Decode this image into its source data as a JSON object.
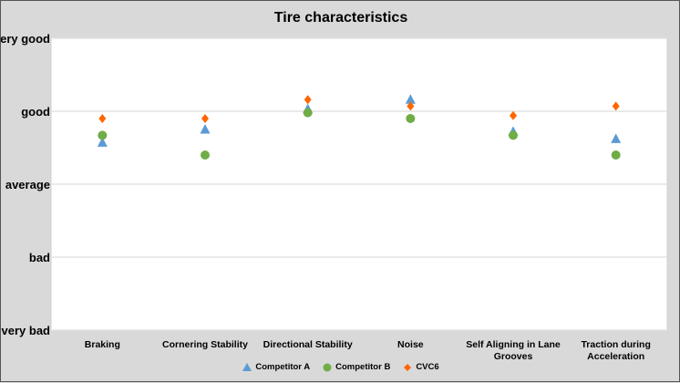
{
  "chart_data": {
    "type": "scatter",
    "title": "Tire characteristics",
    "categories": [
      "Braking",
      "Cornering Stability",
      "Directional Stability",
      "Noise",
      "Self Aligning in Lane Grooves",
      "Traction during Acceleration"
    ],
    "y_tick_labels": [
      "very bad",
      "bad",
      "average",
      "good",
      "very good"
    ],
    "ylim": [
      1,
      5
    ],
    "grid": true,
    "legend_position": "bottom",
    "series": [
      {
        "name": "Competitor A",
        "marker": "triangle",
        "color": "#5b9bd5",
        "values": [
          3.57,
          3.75,
          4.03,
          4.16,
          3.72,
          3.62
        ]
      },
      {
        "name": "Competitor B",
        "marker": "circle",
        "color": "#70ad47",
        "values": [
          3.67,
          3.4,
          3.98,
          3.9,
          3.67,
          3.4
        ]
      },
      {
        "name": "CVC6",
        "marker": "diamond",
        "color": "#ff6600",
        "values": [
          3.9,
          3.9,
          4.16,
          4.07,
          3.94,
          4.07
        ]
      }
    ]
  }
}
